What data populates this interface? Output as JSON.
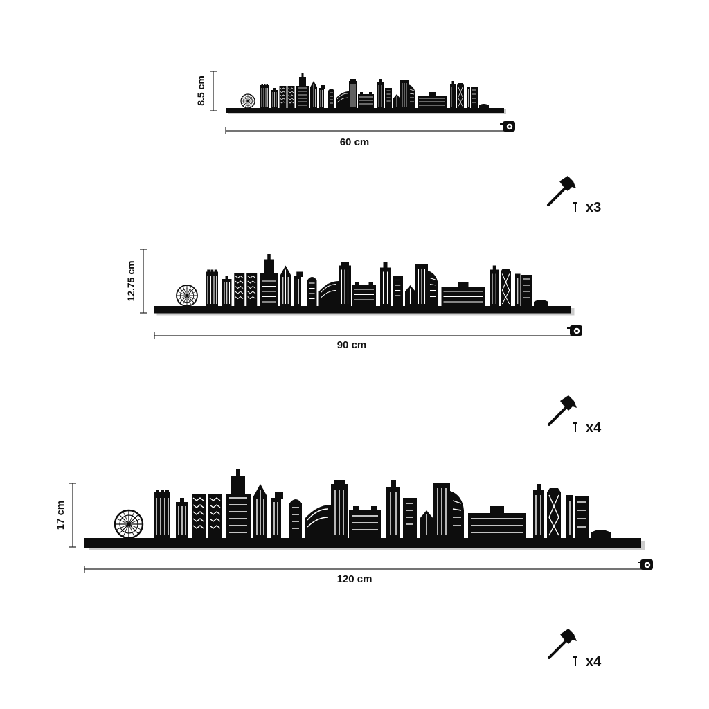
{
  "variants": [
    {
      "length_label": "60 cm",
      "height_label": "8.5 cm",
      "nails_label": "x3"
    },
    {
      "length_label": "90 cm",
      "height_label": "12.75 cm",
      "nails_label": "x4"
    },
    {
      "length_label": "120 cm",
      "height_label": "17 cm",
      "nails_label": "x4"
    }
  ],
  "icons": {
    "hammer": "hammer-icon",
    "nail": "nail-icon",
    "tape_measure": "tape-measure-icon",
    "ferris_wheel": "ferris-wheel-icon"
  },
  "colors": {
    "silhouette": "#0d0d0d",
    "shadow": "#cccccc",
    "background": "#ffffff"
  }
}
